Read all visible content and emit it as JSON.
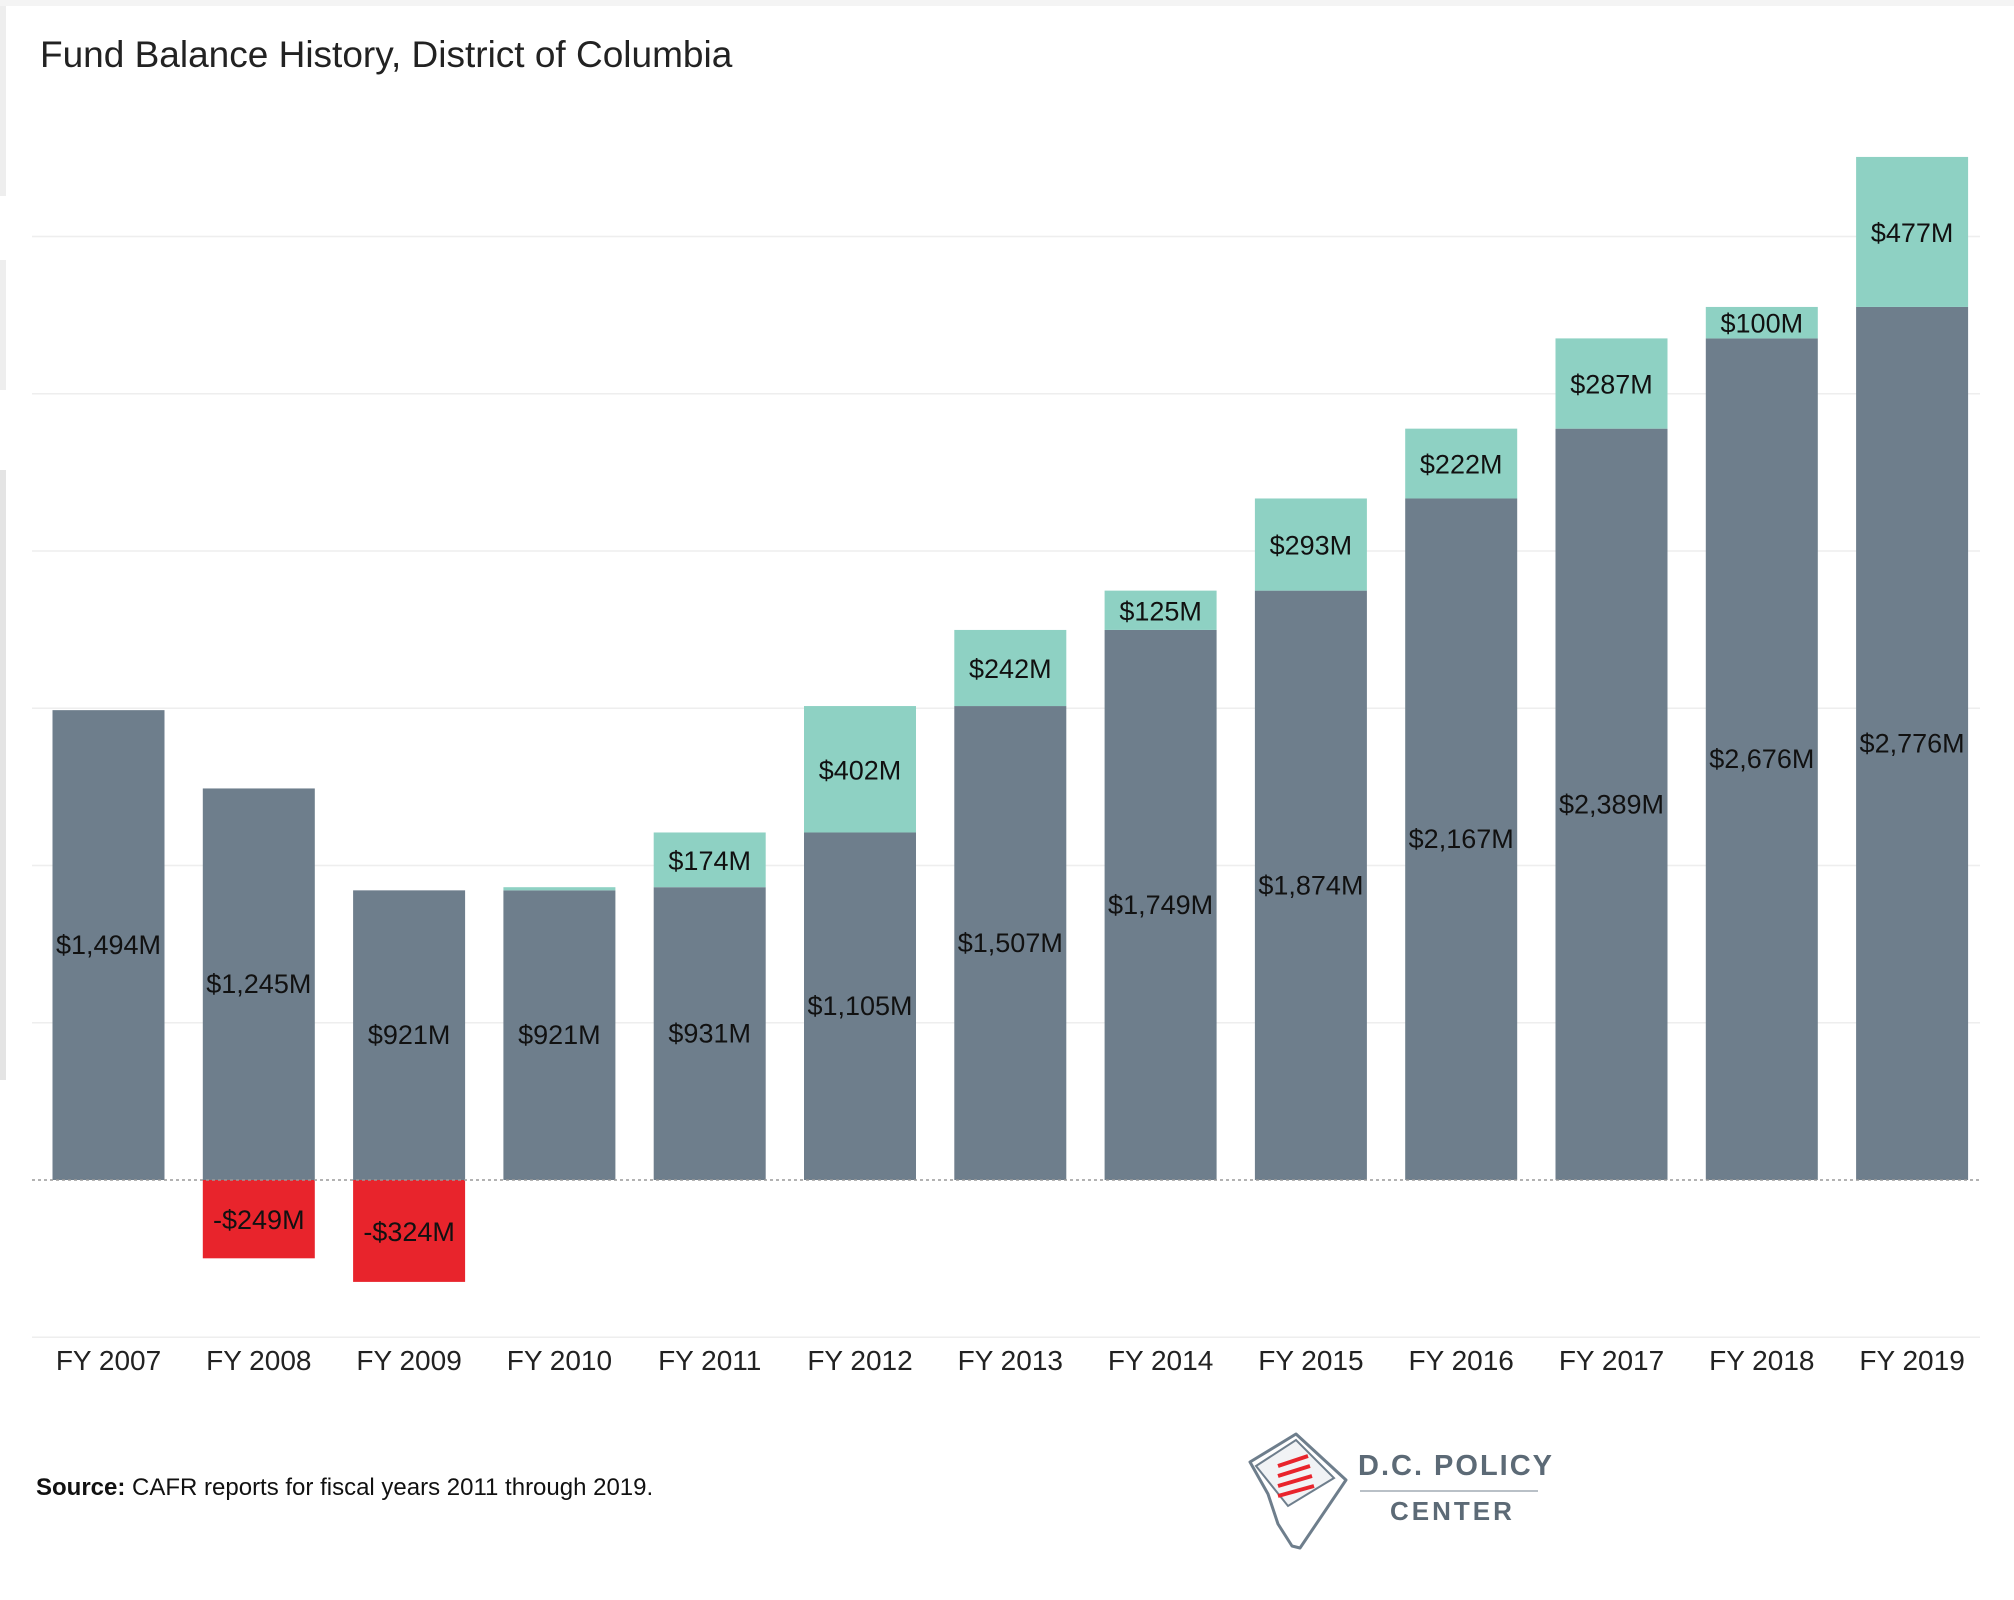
{
  "title": "Fund Balance History, District of Columbia",
  "source": {
    "label": "Source:",
    "text": " CAFR reports for fiscal years 2011 through 2019."
  },
  "logo": {
    "line1": "D.C. POLICY",
    "line2": "CENTER"
  },
  "colors": {
    "base": "#6e7e8c",
    "increase": "#8ed1c3",
    "decrease": "#e8242c",
    "gridline": "#eeeeee",
    "zero_line": "#9a9a9a",
    "label_text": "#111111"
  },
  "chart_data": {
    "type": "bar",
    "stacked": true,
    "categories": [
      "FY 2007",
      "FY 2008",
      "FY 2009",
      "FY 2010",
      "FY 2011",
      "FY 2012",
      "FY 2013",
      "FY 2014",
      "FY 2015",
      "FY 2016",
      "FY 2017",
      "FY 2018",
      "FY 2019"
    ],
    "series": [
      {
        "values": [
          1494,
          1245,
          921,
          921,
          931,
          1105,
          1507,
          1749,
          1874,
          2167,
          2389,
          2676,
          2776
        ],
        "labels": [
          "$1,494M",
          "$1,245M",
          "$921M",
          "$921M",
          "$931M",
          "$1,105M",
          "$1,507M",
          "$1,749M",
          "$1,874M",
          "$2,167M",
          "$2,389M",
          "$2,676M",
          "$2,776M"
        ]
      },
      {
        "values": [
          0,
          -249,
          -324,
          10,
          174,
          402,
          242,
          125,
          293,
          222,
          287,
          100,
          477
        ],
        "labels": [
          "",
          "-$249M",
          "-$324M",
          "",
          "$174M",
          "$402M",
          "$242M",
          "$125M",
          "$293M",
          "$222M",
          "$287M",
          "$100M",
          "$477M"
        ]
      }
    ],
    "ylim": [
      -500,
      3400
    ],
    "gridlines": [
      -500,
      500,
      1000,
      1500,
      2000,
      2500,
      3000
    ],
    "grid": true,
    "legend": "none",
    "xlabel": "",
    "ylabel": ""
  }
}
